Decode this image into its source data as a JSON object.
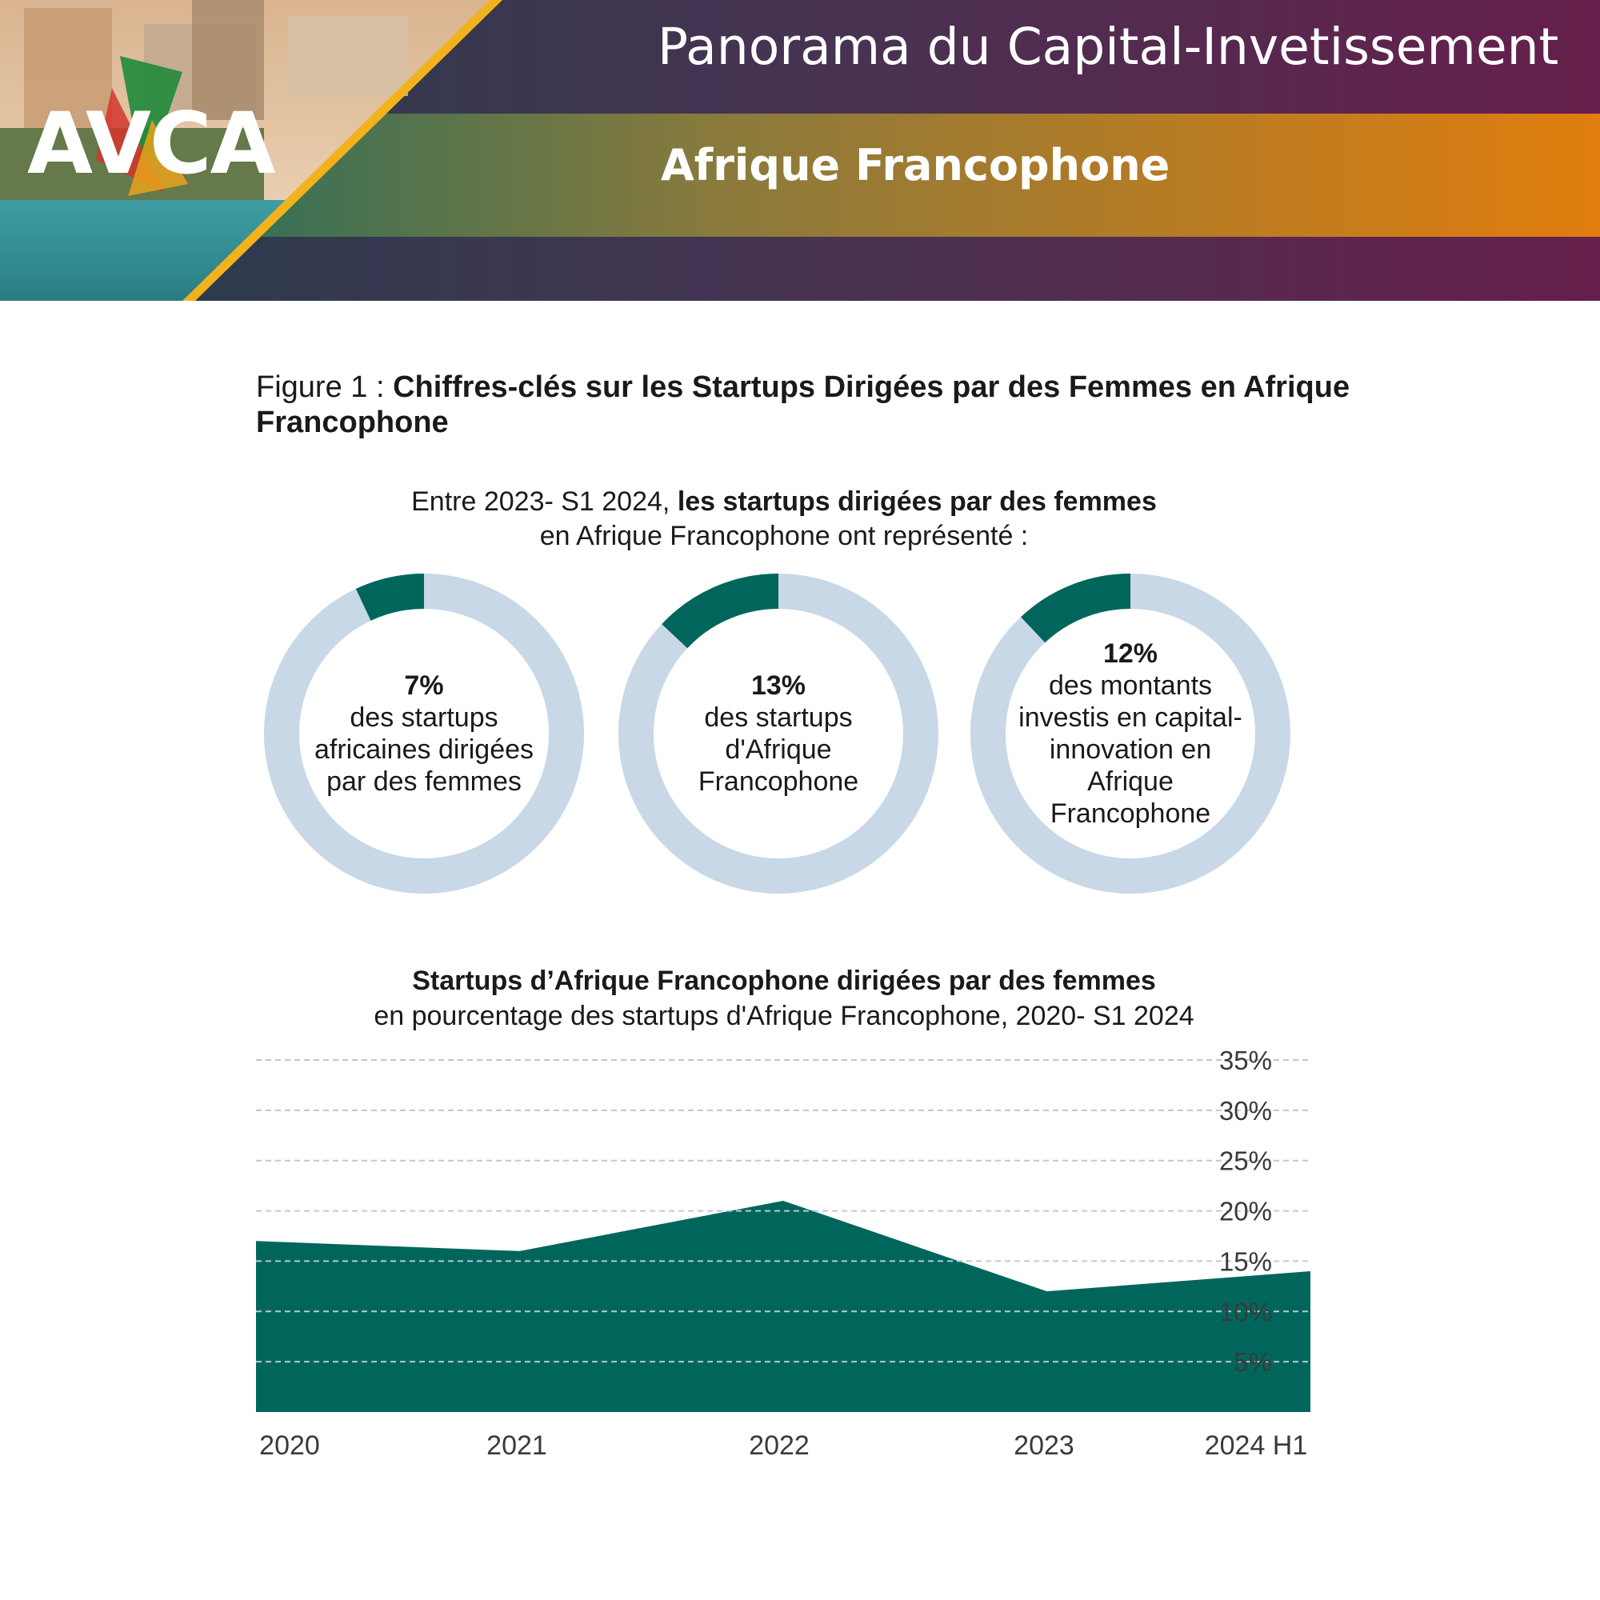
{
  "banner": {
    "title": "Panorama du Capital-Invetissement",
    "subtitle": "Afrique Francophone",
    "logo_text": "AVCA",
    "colors": {
      "dark": "#2f3d52",
      "purple": "#5c1f4a",
      "band_start": "#0b6b63",
      "band_end": "#e07d0e",
      "stripe": "#f2b21c",
      "sky": "#e8c9a6",
      "sea": "#2f8f94"
    }
  },
  "figure": {
    "label": "Figure 1 : ",
    "title": "Chiffres-clés sur les Startups Dirigées par des Femmes en Afrique Francophone"
  },
  "intro": {
    "part1": "Entre 2023- S1 2024, ",
    "part2_bold": "les startups dirigées par des femmes",
    "part3": "en Afrique Francophone ont représenté :"
  },
  "donuts": [
    {
      "value": 7,
      "pct_label": "7%",
      "text": "des startups africaines dirigées par des femmes"
    },
    {
      "value": 13,
      "pct_label": "13%",
      "text": "des startups d'Afrique Francophone"
    },
    {
      "value": 12,
      "pct_label": "12%",
      "text": "des montants investis en capital-innovation en Afrique Francophone"
    }
  ],
  "colors": {
    "accent": "#00665c",
    "ring": "#c8d8e6",
    "grid": "#b7c9d9"
  },
  "chart_data": {
    "type": "area",
    "title": "Startups d’Afrique Francophone dirigées par des femmes",
    "subtitle": "en pourcentage des startups d'Afrique Francophone, 2020- S1 2024",
    "categories": [
      "2020",
      "2021",
      "2022",
      "2023",
      "2024 H1"
    ],
    "series": [
      {
        "values": [
          17,
          16,
          21,
          12,
          14
        ]
      }
    ],
    "ylim": [
      0,
      35
    ],
    "yticks": [
      5,
      10,
      15,
      20,
      25,
      30,
      35
    ],
    "ytick_labels": [
      "5%",
      "10%",
      "15%",
      "20%",
      "25%",
      "30%",
      "35%"
    ],
    "grid": true,
    "y_axis_side": "right"
  }
}
